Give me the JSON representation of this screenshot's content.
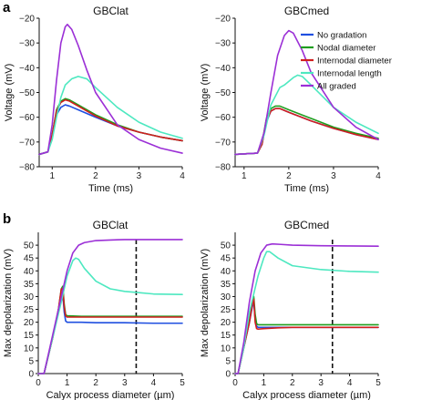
{
  "colors": {
    "no_gradation": "#1f4fe0",
    "nodal_diameter": "#1f9e1f",
    "internodal_diameter": "#d21e1e",
    "internodal_length": "#4de8c0",
    "all_graded": "#9b2fd6"
  },
  "panel_labels": [
    "a",
    "b"
  ],
  "legend": {
    "placement": "top-right of panel a (GBCmed)",
    "entries": [
      "No gradation",
      "Nodal diameter",
      "Internodal diameter",
      "Internodal length",
      "All graded"
    ]
  },
  "chart_data": [
    {
      "type": "line",
      "title": "GBClat",
      "xlabel": "Time (ms)",
      "ylabel": "Voltage (mV)",
      "xlim": [
        0.7,
        4
      ],
      "ylim": [
        -80,
        -20
      ],
      "xticks": [
        1,
        2,
        3,
        4
      ],
      "yticks": [
        -80,
        -70,
        -60,
        -50,
        -40,
        -30,
        -20
      ],
      "series": [
        {
          "name": "No gradation",
          "color_key": "no_gradation",
          "x": [
            0.7,
            0.9,
            1.0,
            1.1,
            1.2,
            1.3,
            1.4,
            1.6,
            2.0,
            2.5,
            3.0,
            3.5,
            4.0
          ],
          "y": [
            -75,
            -74,
            -68,
            -59,
            -56,
            -55,
            -55.5,
            -57,
            -60,
            -63.5,
            -66,
            -68,
            -69.5
          ]
        },
        {
          "name": "Nodal diameter",
          "color_key": "nodal_diameter",
          "x": [
            0.7,
            0.9,
            1.0,
            1.1,
            1.2,
            1.3,
            1.4,
            1.6,
            2.0,
            2.5,
            3.0,
            3.5,
            4.0
          ],
          "y": [
            -75,
            -74,
            -67,
            -57,
            -53.5,
            -52.5,
            -53,
            -55,
            -59,
            -63,
            -66,
            -68,
            -69.5
          ]
        },
        {
          "name": "Internodal diameter",
          "color_key": "internodal_diameter",
          "x": [
            0.7,
            0.9,
            1.0,
            1.1,
            1.2,
            1.3,
            1.4,
            1.6,
            2.0,
            2.5,
            3.0,
            3.5,
            4.0
          ],
          "y": [
            -75,
            -74,
            -67,
            -57.5,
            -54,
            -53,
            -53.5,
            -55.5,
            -59.5,
            -63.5,
            -66,
            -68,
            -69.5
          ]
        },
        {
          "name": "Internodal length",
          "color_key": "internodal_length",
          "x": [
            0.7,
            0.9,
            1.0,
            1.1,
            1.2,
            1.3,
            1.45,
            1.6,
            1.8,
            2.0,
            2.5,
            3.0,
            3.5,
            4.0
          ],
          "y": [
            -75,
            -74,
            -69,
            -60,
            -52,
            -47,
            -44.5,
            -43.5,
            -44.5,
            -48,
            -56,
            -62,
            -66,
            -68.5
          ]
        },
        {
          "name": "All graded",
          "color_key": "all_graded",
          "x": [
            0.7,
            0.9,
            1.0,
            1.1,
            1.2,
            1.3,
            1.35,
            1.45,
            1.6,
            1.8,
            2.0,
            2.5,
            3.0,
            3.5,
            4.0
          ],
          "y": [
            -75,
            -74,
            -63,
            -45,
            -30,
            -23.5,
            -22.5,
            -24.5,
            -31,
            -41,
            -50,
            -63,
            -69,
            -72.5,
            -74.5
          ]
        }
      ]
    },
    {
      "type": "line",
      "title": "GBCmed",
      "xlabel": "Time (ms)",
      "ylabel": "Voltage (mV)",
      "xlim": [
        0.8,
        4
      ],
      "ylim": [
        -80,
        -20
      ],
      "xticks": [
        1,
        2,
        3,
        4
      ],
      "yticks": [
        -80,
        -70,
        -60,
        -50,
        -40,
        -30,
        -20
      ],
      "series": [
        {
          "name": "No gradation",
          "color_key": "no_gradation",
          "x": [
            0.8,
            1.3,
            1.4,
            1.5,
            1.6,
            1.7,
            1.8,
            2.0,
            2.5,
            3.0,
            3.5,
            4.0
          ],
          "y": [
            -75,
            -74.5,
            -71,
            -62,
            -57.5,
            -56.5,
            -56.5,
            -58,
            -61.5,
            -64.5,
            -67,
            -69
          ]
        },
        {
          "name": "Nodal diameter",
          "color_key": "nodal_diameter",
          "x": [
            0.8,
            1.3,
            1.4,
            1.5,
            1.6,
            1.7,
            1.8,
            2.0,
            2.5,
            3.0,
            3.5,
            4.0
          ],
          "y": [
            -75,
            -74.5,
            -70.5,
            -60.5,
            -56.5,
            -55.5,
            -55.5,
            -57,
            -60.5,
            -64,
            -66.5,
            -68.5
          ]
        },
        {
          "name": "Internodal diameter",
          "color_key": "internodal_diameter",
          "x": [
            0.8,
            1.3,
            1.4,
            1.5,
            1.6,
            1.7,
            1.8,
            2.0,
            2.5,
            3.0,
            3.5,
            4.0
          ],
          "y": [
            -75,
            -74.5,
            -71,
            -61.5,
            -57.5,
            -56.5,
            -56.5,
            -58,
            -61.5,
            -64.5,
            -67,
            -69
          ]
        },
        {
          "name": "Internodal length",
          "color_key": "internodal_length",
          "x": [
            0.8,
            1.3,
            1.45,
            1.6,
            1.8,
            1.9,
            2.1,
            2.2,
            2.3,
            2.5,
            3.0,
            3.5,
            4.0
          ],
          "y": [
            -75,
            -74.5,
            -67,
            -55,
            -48,
            -47,
            -44,
            -43,
            -43.5,
            -47,
            -56,
            -62,
            -66.5
          ]
        },
        {
          "name": "All graded",
          "color_key": "all_graded",
          "x": [
            0.8,
            1.3,
            1.45,
            1.6,
            1.75,
            1.9,
            2.0,
            2.1,
            2.3,
            2.5,
            3.0,
            3.5,
            4.0
          ],
          "y": [
            -75,
            -74.5,
            -66,
            -50,
            -35,
            -27,
            -25,
            -26,
            -33,
            -42,
            -56,
            -64,
            -69
          ]
        }
      ]
    },
    {
      "type": "line",
      "title": "GBClat",
      "xlabel": "Calyx process diameter (µm)",
      "ylabel": "Max depolarization (mV)",
      "xlim": [
        0,
        5
      ],
      "ylim": [
        0,
        55
      ],
      "xticks": [
        0,
        1,
        2,
        3,
        4,
        5
      ],
      "yticks": [
        0,
        5,
        10,
        15,
        20,
        25,
        30,
        35,
        40,
        45,
        50
      ],
      "vline": 3.4,
      "series": [
        {
          "name": "No gradation",
          "color_key": "no_gradation",
          "x": [
            0,
            0.2,
            0.5,
            0.7,
            0.8,
            0.85,
            0.9,
            0.95,
            1.0,
            1.5,
            2,
            3,
            4,
            5
          ],
          "y": [
            0,
            0,
            14,
            24,
            30,
            31,
            24,
            20.5,
            20,
            20,
            19.8,
            19.8,
            19.6,
            19.6
          ]
        },
        {
          "name": "Nodal diameter",
          "color_key": "nodal_diameter",
          "x": [
            0,
            0.2,
            0.5,
            0.7,
            0.8,
            0.85,
            0.9,
            0.95,
            1.0,
            1.5,
            2,
            3,
            4,
            5
          ],
          "y": [
            0,
            0,
            14,
            25,
            33,
            34,
            27,
            23,
            22.5,
            22.3,
            22.3,
            22.3,
            22.3,
            22.3
          ]
        },
        {
          "name": "Internodal diameter",
          "color_key": "internodal_diameter",
          "x": [
            0,
            0.2,
            0.5,
            0.7,
            0.8,
            0.85,
            0.9,
            0.95,
            1.0,
            1.5,
            2,
            3,
            4,
            5
          ],
          "y": [
            0,
            0,
            14,
            25,
            33,
            33,
            26,
            22.5,
            22,
            22,
            22,
            22,
            22,
            22
          ]
        },
        {
          "name": "Internodal length",
          "color_key": "internodal_length",
          "x": [
            0,
            0.2,
            0.5,
            0.8,
            1.0,
            1.2,
            1.3,
            1.4,
            1.6,
            2.0,
            2.5,
            3.0,
            3.5,
            4.0,
            5.0
          ],
          "y": [
            0,
            0,
            14,
            28,
            38,
            44,
            45,
            44.5,
            41,
            36,
            33,
            32,
            31.5,
            31,
            30.8
          ]
        },
        {
          "name": "All graded",
          "color_key": "all_graded",
          "x": [
            0,
            0.2,
            0.5,
            0.8,
            1.0,
            1.2,
            1.4,
            1.6,
            2.0,
            2.5,
            3.0,
            4.0,
            5.0
          ],
          "y": [
            0,
            0,
            15,
            30,
            40,
            47,
            50,
            51,
            51.8,
            52,
            52.2,
            52.2,
            52.2
          ]
        }
      ]
    },
    {
      "type": "line",
      "title": "GBCmed",
      "xlabel": "Calyx process diameter (µm)",
      "ylabel": "Max depolarization (mV)",
      "xlim": [
        0,
        5
      ],
      "ylim": [
        0,
        55
      ],
      "xticks": [
        0,
        1,
        2,
        3,
        4,
        5
      ],
      "yticks": [
        0,
        5,
        10,
        15,
        20,
        25,
        30,
        35,
        40,
        45,
        50
      ],
      "vline": 3.4,
      "series": [
        {
          "name": "No gradation",
          "color_key": "no_gradation",
          "x": [
            0,
            0.1,
            0.3,
            0.5,
            0.6,
            0.65,
            0.7,
            0.75,
            0.8,
            1.0,
            1.5,
            2,
            3,
            4,
            5
          ],
          "y": [
            0,
            0,
            10,
            20,
            26,
            28,
            21,
            18.5,
            18,
            18,
            18,
            18,
            18,
            18,
            18
          ]
        },
        {
          "name": "Nodal diameter",
          "color_key": "nodal_diameter",
          "x": [
            0,
            0.1,
            0.3,
            0.5,
            0.6,
            0.65,
            0.7,
            0.75,
            0.8,
            1.0,
            1.5,
            2,
            3,
            4,
            5
          ],
          "y": [
            0,
            0,
            10,
            21,
            28,
            30,
            23,
            19.5,
            19,
            19,
            19,
            19,
            19,
            19,
            19
          ]
        },
        {
          "name": "Internodal diameter",
          "color_key": "internodal_diameter",
          "x": [
            0,
            0.1,
            0.3,
            0.5,
            0.6,
            0.65,
            0.7,
            0.75,
            0.8,
            1.0,
            1.5,
            2,
            3,
            4,
            5
          ],
          "y": [
            0,
            0,
            10,
            20,
            27,
            29,
            20,
            17.5,
            17.3,
            17.5,
            17.8,
            18,
            18,
            18,
            18
          ]
        },
        {
          "name": "Internodal length",
          "color_key": "internodal_length",
          "x": [
            0,
            0.1,
            0.3,
            0.5,
            0.8,
            1.0,
            1.1,
            1.2,
            1.5,
            2.0,
            3.0,
            4.0,
            5.0
          ],
          "y": [
            0,
            0,
            10,
            24,
            38,
            45,
            47.5,
            47.5,
            45,
            42,
            40.5,
            39.8,
            39.5
          ]
        },
        {
          "name": "All graded",
          "color_key": "all_graded",
          "x": [
            0,
            0.1,
            0.3,
            0.5,
            0.7,
            0.9,
            1.1,
            1.3,
            1.6,
            2.0,
            3.0,
            4.0,
            5.0
          ],
          "y": [
            0,
            0,
            12,
            28,
            40,
            47,
            50,
            50.5,
            50.3,
            50,
            49.8,
            49.7,
            49.6
          ]
        }
      ]
    }
  ]
}
